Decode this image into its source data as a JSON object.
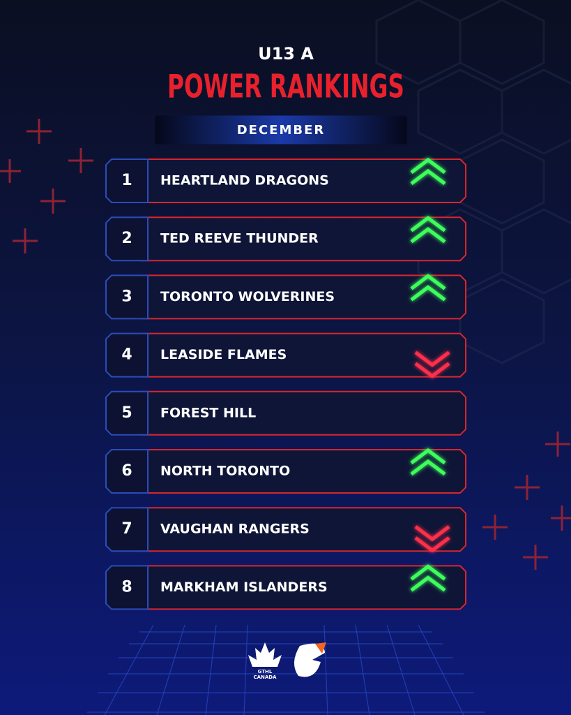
{
  "header": {
    "subtitle": "U13 A",
    "title": "POWER RANKINGS",
    "month": "DECEMBER"
  },
  "rankings": [
    {
      "rank": 1,
      "team": "HEARTLAND DRAGONS",
      "trend": "up"
    },
    {
      "rank": 2,
      "team": "TED REEVE THUNDER",
      "trend": "up"
    },
    {
      "rank": 3,
      "team": "TORONTO WOLVERINES",
      "trend": "up"
    },
    {
      "rank": 4,
      "team": "LEASIDE FLAMES",
      "trend": "down"
    },
    {
      "rank": 5,
      "team": "FOREST HILL",
      "trend": "same"
    },
    {
      "rank": 6,
      "team": "NORTH TORONTO",
      "trend": "up"
    },
    {
      "rank": 7,
      "team": "VAUGHAN RANGERS",
      "trend": "down"
    },
    {
      "rank": 8,
      "team": "MARKHAM ISLANDERS",
      "trend": "up"
    }
  ],
  "footer": {
    "logo_line1": "GTHL",
    "logo_line2": "CANADA"
  }
}
